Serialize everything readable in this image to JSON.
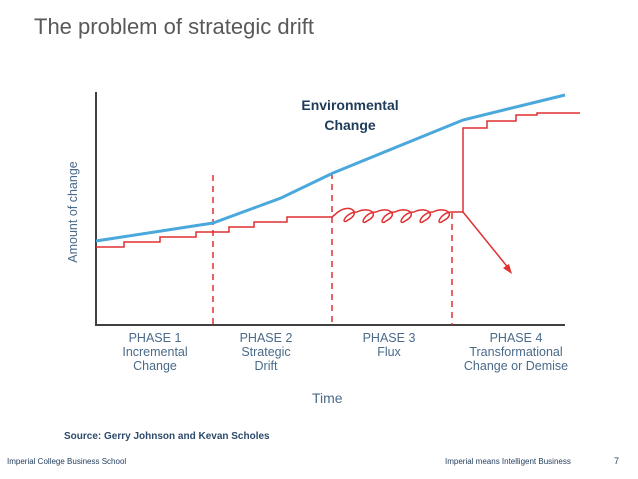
{
  "slide": {
    "title": "The problem of strategic drift",
    "source": "Source: Gerry Johnson and Kevan Scholes"
  },
  "diagram": {
    "y_axis_label": "Amount of change",
    "x_axis_label": "Time",
    "environmental_label_line1": "Environmental",
    "environmental_label_line2": "Change",
    "phases": [
      {
        "name": "PHASE 1",
        "line1": "Incremental",
        "line2": "Change"
      },
      {
        "name": "PHASE 2",
        "line1": "Strategic",
        "line2": "Drift"
      },
      {
        "name": "PHASE 3",
        "line1": "Flux",
        "line2": ""
      },
      {
        "name": "PHASE 4",
        "line1": "Transformational",
        "line2": "Change or Demise"
      }
    ]
  },
  "colors": {
    "environment_line": "#4aa8dc",
    "strategy_line": "#e03030",
    "axis": "#404040",
    "env_label": "#1f3b5a"
  },
  "footer": {
    "left": "Imperial College Business School",
    "right": "Imperial means Intelligent Business",
    "page_number": "7"
  }
}
